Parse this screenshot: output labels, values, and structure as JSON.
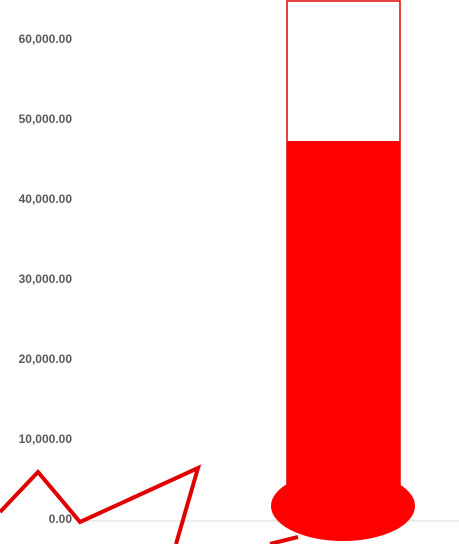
{
  "chart_data": {
    "type": "bar",
    "style": "thermometer",
    "categories": [
      ""
    ],
    "values": [
      47500
    ],
    "goal": 65000,
    "ylim": [
      0,
      65000
    ],
    "yticks": [
      0,
      10000,
      20000,
      30000,
      40000,
      50000,
      60000
    ],
    "ytick_labels": [
      "0.00",
      "10,000.00",
      "20,000.00",
      "30,000.00",
      "40,000.00",
      "50,000.00",
      "60,000.00"
    ],
    "grid": false,
    "colors": {
      "fill": "#ff0000",
      "outline": "#e00000",
      "axis_text": "#595959",
      "axis_line": "#d9d9d9",
      "annotation": "#e00000"
    }
  },
  "decorations": {
    "zigzag_arrow_icon": "red-zigzag-arrow"
  }
}
